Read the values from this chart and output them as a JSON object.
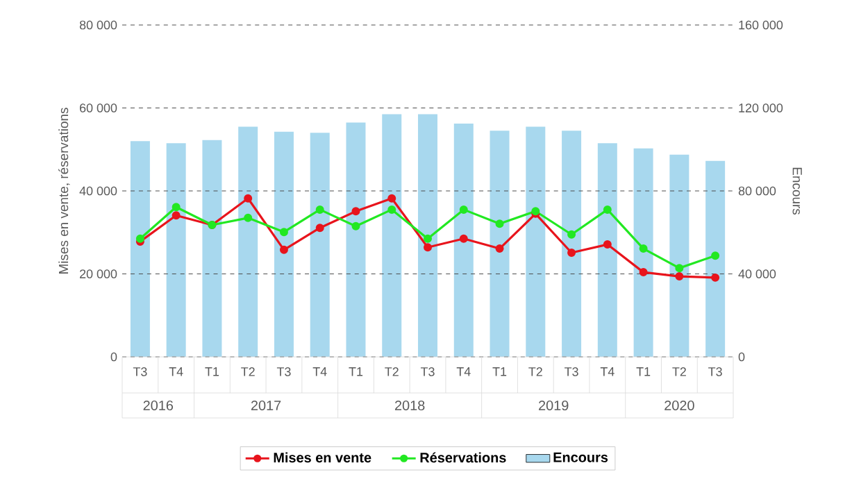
{
  "chart_data": {
    "type": "line",
    "categories": [
      "T3",
      "T4",
      "T1",
      "T2",
      "T3",
      "T4",
      "T1",
      "T2",
      "T3",
      "T4",
      "T1",
      "T2",
      "T3",
      "T4",
      "T1",
      "T2",
      "T3"
    ],
    "series": [
      {
        "name": "Mises en vente",
        "color": "#e8141c",
        "marker": "circle",
        "values": [
          27800,
          34100,
          31800,
          38200,
          25800,
          31100,
          35100,
          38200,
          26400,
          28500,
          26100,
          34500,
          25100,
          27100,
          20400,
          19400,
          19100
        ]
      },
      {
        "name": "Réservations",
        "color": "#22e822",
        "marker": "circle",
        "values": [
          28500,
          36100,
          31800,
          33500,
          30100,
          35500,
          31500,
          35500,
          28500,
          35500,
          32100,
          35100,
          29500,
          35500,
          26100,
          21400,
          24400
        ]
      },
      {
        "name": "Encours",
        "type": "bar",
        "axis": "y2",
        "color": "#a8d8ee",
        "values": [
          104000,
          103000,
          104500,
          111000,
          108500,
          108000,
          113000,
          117000,
          117000,
          112500,
          109000,
          111000,
          109000,
          103000,
          100500,
          97500,
          94500
        ]
      }
    ],
    "ylabel": "Mises en vente, réservations",
    "y2label": "Encours",
    "ylim": [
      0,
      80000
    ],
    "yticks": [
      0,
      {
        "value": 20000,
        "label": "20 000"
      },
      {
        "value": 40000,
        "label": "40 000"
      },
      {
        "value": 60000,
        "label": "60 000"
      },
      {
        "value": 80000,
        "label": "80 000"
      }
    ],
    "y2lim": [
      0,
      160000
    ],
    "y2ticks": [
      0,
      {
        "value": 40000,
        "label": "40 000"
      },
      {
        "value": 80000,
        "label": "80 000"
      },
      {
        "value": 120000,
        "label": "120 000"
      },
      {
        "value": 160000,
        "label": "160 000"
      }
    ],
    "annotations": [
      "2016",
      "2017",
      "2018",
      "2019",
      "2020"
    ],
    "grid": "y",
    "legend": "bottom",
    "line_style": "solid"
  }
}
